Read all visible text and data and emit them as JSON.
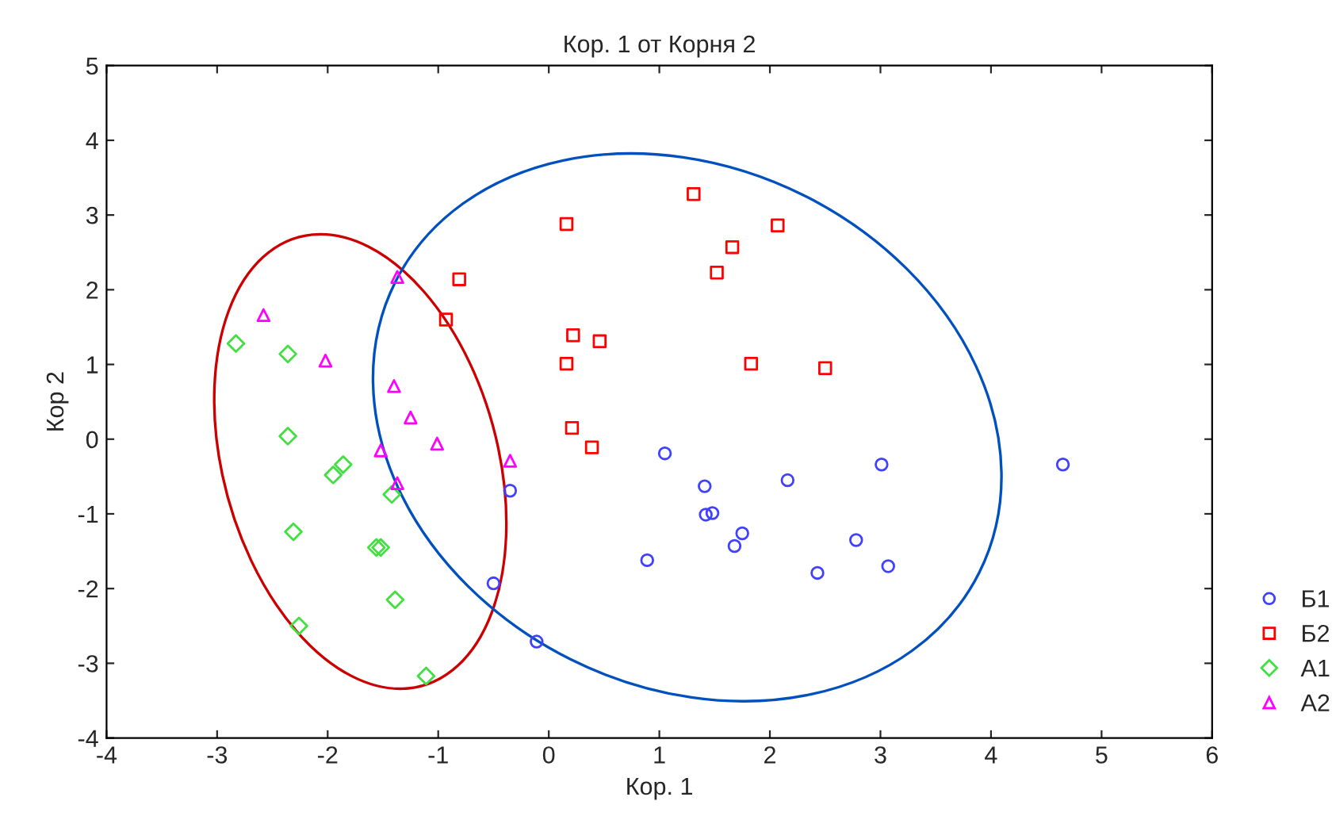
{
  "chart_data": {
    "type": "scatter",
    "title": "Кор. 1 от Корня 2",
    "xlabel": "Кор. 1",
    "ylabel": "Кор 2",
    "xlim": [
      -4,
      6
    ],
    "xticks": [
      -4,
      -3,
      -2,
      -1,
      0,
      1,
      2,
      3,
      4,
      5,
      6
    ],
    "ylim": [
      -4,
      5
    ],
    "yticks": [
      -4,
      -3,
      -2,
      -1,
      0,
      1,
      2,
      3,
      4,
      5
    ],
    "legend": "right",
    "grid": false,
    "series": [
      {
        "name": "Б1",
        "color": "#4040ff",
        "marker": "circle",
        "x": [
          1.05,
          1.41,
          1.42,
          1.48,
          1.75,
          1.68,
          2.16,
          3.01,
          4.65,
          0.89,
          2.78,
          2.43,
          3.07,
          -0.35,
          -0.5,
          -0.11
        ],
        "values": [
          -0.19,
          -0.63,
          -1.01,
          -0.99,
          -1.26,
          -1.43,
          -0.55,
          -0.34,
          -0.34,
          -1.62,
          -1.35,
          -1.79,
          -1.7,
          -0.69,
          -1.93,
          -2.71
        ]
      },
      {
        "name": "Б2",
        "color": "#ff0000",
        "marker": "square",
        "x": [
          1.31,
          0.16,
          2.07,
          1.66,
          1.52,
          0.22,
          0.46,
          0.16,
          1.83,
          2.5,
          0.21,
          0.39,
          -0.81,
          -0.93
        ],
        "values": [
          3.28,
          2.88,
          2.86,
          2.57,
          2.23,
          1.39,
          1.31,
          1.01,
          1.01,
          0.95,
          0.15,
          -0.11,
          2.14,
          1.6
        ]
      },
      {
        "name": "А1",
        "color": "#40e040",
        "marker": "diamond",
        "x": [
          -2.83,
          -2.36,
          -2.36,
          -1.86,
          -1.95,
          -1.42,
          -2.31,
          -1.56,
          -1.52,
          -1.39,
          -2.26,
          -1.11
        ],
        "values": [
          1.28,
          1.14,
          0.04,
          -0.34,
          -0.48,
          -0.74,
          -1.24,
          -1.45,
          -1.45,
          -2.15,
          -2.5,
          -3.17
        ]
      },
      {
        "name": "А2",
        "color": "#ff00ff",
        "marker": "triangle",
        "x": [
          -1.37,
          -2.58,
          -2.02,
          -1.4,
          -1.25,
          -1.52,
          -1.01,
          -0.35,
          -1.37
        ],
        "values": [
          2.17,
          1.66,
          1.05,
          0.71,
          0.29,
          -0.15,
          -0.06,
          -0.29,
          -0.59
        ]
      }
    ]
  }
}
